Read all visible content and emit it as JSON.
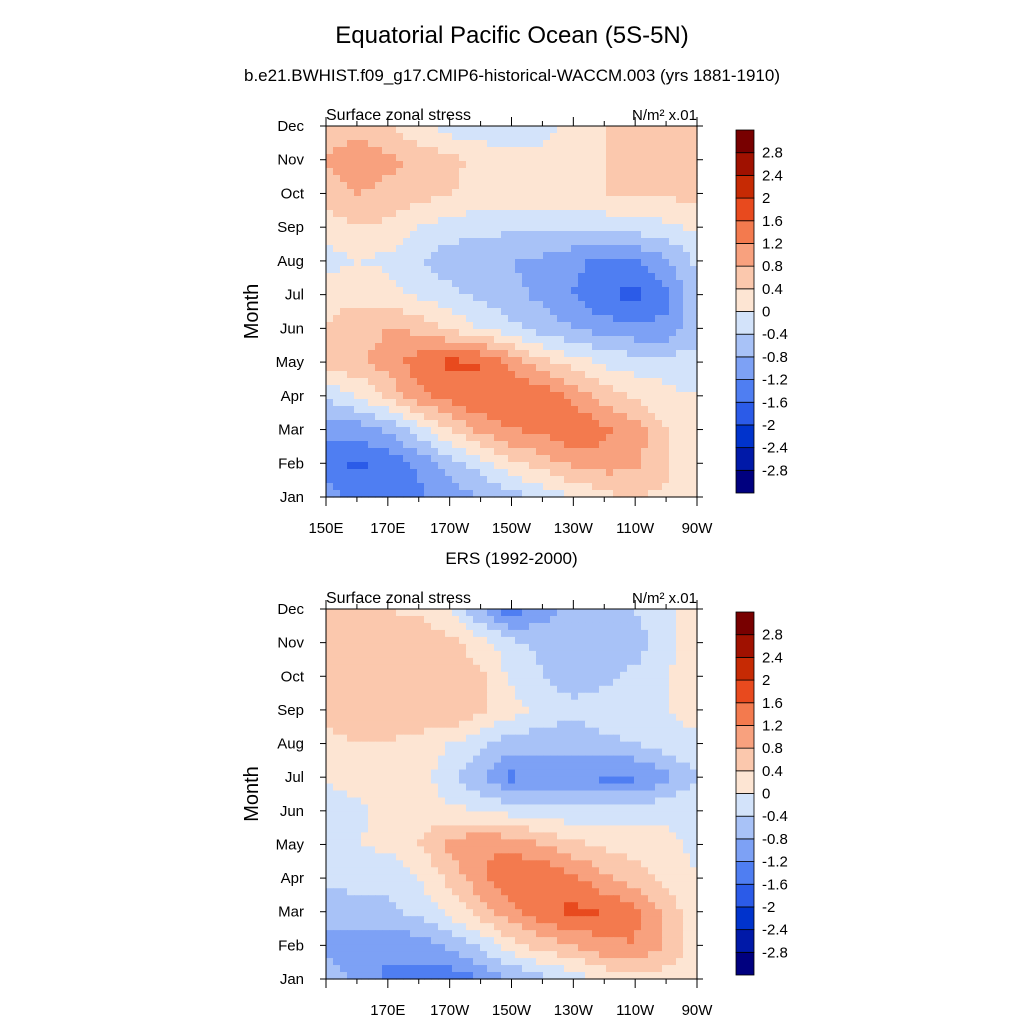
{
  "main_title": "Equatorial Pacific Ocean (5S-5N)",
  "sub_title": "b.e21.BWHIST.f09_g17.CMIP6-historical-WACCM.003 (yrs 1881-1910)",
  "colorbar": {
    "levels": [
      "-2.8",
      "-2.4",
      "-2",
      "-1.6",
      "-1.2",
      "-0.8",
      "-0.4",
      "0",
      "0.4",
      "0.8",
      "1.2",
      "1.6",
      "2",
      "2.4",
      "2.8"
    ],
    "colors": [
      "#00007f",
      "#0019a8",
      "#0033cc",
      "#2b5be8",
      "#4f7ef2",
      "#7da1f5",
      "#a8c2f7",
      "#d3e3fa",
      "#fde5d3",
      "#fbc8ad",
      "#f8a17e",
      "#f37a4e",
      "#e84a1e",
      "#c62a04",
      "#a01100",
      "#780000"
    ]
  },
  "chart_data": [
    {
      "type": "heatmap",
      "title": "",
      "left_label": "Surface zonal stress",
      "units": "N/m² x.01",
      "ylabel": "Month",
      "x_ticks": [
        "150E",
        "170E",
        "170W",
        "150W",
        "130W",
        "110W",
        "90W"
      ],
      "y_ticks": [
        "Jan",
        "Feb",
        "Mar",
        "Apr",
        "May",
        "Jun",
        "Jul",
        "Aug",
        "Sep",
        "Oct",
        "Nov",
        "Dec"
      ],
      "x": [
        150,
        160,
        170,
        180,
        190,
        200,
        210,
        220,
        230,
        240,
        250,
        260,
        270
      ],
      "y": [
        "Jan",
        "Feb",
        "Mar",
        "Apr",
        "May",
        "Jun",
        "Jul",
        "Aug",
        "Sep",
        "Oct",
        "Nov",
        "Dec"
      ],
      "z": [
        [
          -1.0,
          -1.3,
          -1.4,
          -1.3,
          -1.0,
          -0.8,
          -0.6,
          -0.3,
          0.0,
          0.3,
          0.4,
          0.3,
          0.0
        ],
        [
          -1.4,
          -1.7,
          -1.5,
          -1.1,
          -0.6,
          -0.2,
          0.3,
          0.6,
          0.9,
          1.0,
          0.9,
          0.5,
          0.0
        ],
        [
          -1.1,
          -1.0,
          -0.7,
          -0.2,
          0.4,
          0.9,
          1.2,
          1.3,
          1.6,
          1.3,
          1.0,
          0.4,
          0.0
        ],
        [
          -0.3,
          0.0,
          0.5,
          1.1,
          1.4,
          1.6,
          1.6,
          1.5,
          1.1,
          0.6,
          0.3,
          0.1,
          0.0
        ],
        [
          0.6,
          0.7,
          1.0,
          1.4,
          1.7,
          1.6,
          1.1,
          0.5,
          0.2,
          -0.1,
          -0.2,
          -0.2,
          -0.3
        ],
        [
          0.4,
          0.6,
          0.8,
          0.7,
          0.3,
          0.0,
          -0.3,
          -0.6,
          -0.8,
          -1.0,
          -1.1,
          -1.1,
          -0.5
        ],
        [
          0.3,
          0.3,
          0.2,
          -0.1,
          -0.3,
          -0.5,
          -0.7,
          -0.9,
          -1.2,
          -1.6,
          -1.7,
          -1.3,
          -0.4
        ],
        [
          -0.2,
          0.0,
          -0.1,
          -0.4,
          -0.6,
          -0.7,
          -0.8,
          -0.9,
          -1.1,
          -1.3,
          -1.2,
          -0.9,
          -0.3
        ],
        [
          0.2,
          0.4,
          0.3,
          0.0,
          -0.2,
          -0.3,
          -0.3,
          -0.3,
          -0.3,
          -0.3,
          -0.2,
          -0.1,
          0.1
        ],
        [
          0.6,
          0.8,
          0.7,
          0.6,
          0.4,
          0.3,
          0.3,
          0.3,
          0.4,
          0.4,
          0.5,
          0.5,
          0.5
        ],
        [
          0.8,
          1.1,
          0.9,
          0.7,
          0.5,
          0.3,
          0.2,
          0.2,
          0.3,
          0.4,
          0.5,
          0.5,
          0.5
        ],
        [
          0.5,
          0.6,
          0.4,
          0.1,
          -0.2,
          -0.3,
          -0.4,
          -0.2,
          0.2,
          0.4,
          0.4,
          0.5,
          0.5
        ]
      ]
    },
    {
      "type": "heatmap",
      "title": "ERS (1992-2000)",
      "left_label": "Surface zonal stress",
      "units": "N/m² x.01",
      "ylabel": "Month",
      "x_ticks": [
        "170E",
        "170W",
        "150W",
        "130W",
        "110W",
        "90W"
      ],
      "y_ticks": [
        "Jan",
        "Feb",
        "Mar",
        "Apr",
        "May",
        "Jun",
        "Jul",
        "Aug",
        "Sep",
        "Oct",
        "Nov",
        "Dec"
      ],
      "x": [
        150,
        160,
        170,
        180,
        190,
        200,
        210,
        220,
        230,
        240,
        250,
        260,
        270
      ],
      "y": [
        "Jan",
        "Feb",
        "Mar",
        "Apr",
        "May",
        "Jun",
        "Jul",
        "Aug",
        "Sep",
        "Oct",
        "Nov",
        "Dec"
      ],
      "z": [
        [
          -0.6,
          -0.9,
          -1.3,
          -1.4,
          -1.5,
          -1.2,
          -0.8,
          -0.5,
          -0.2,
          0.1,
          0.3,
          0.2,
          0.0
        ],
        [
          -0.9,
          -1.0,
          -1.1,
          -1.0,
          -0.7,
          -0.3,
          0.2,
          0.6,
          0.8,
          1.1,
          1.2,
          0.8,
          0.2
        ],
        [
          -0.7,
          -0.6,
          -0.5,
          -0.3,
          0.1,
          0.6,
          1.1,
          1.5,
          1.7,
          1.6,
          1.3,
          0.7,
          0.1
        ],
        [
          -0.3,
          -0.2,
          -0.3,
          0.0,
          0.5,
          1.1,
          1.5,
          1.6,
          1.3,
          0.9,
          0.6,
          0.3,
          0.0
        ],
        [
          -0.1,
          0.0,
          0.1,
          0.4,
          0.9,
          1.2,
          1.1,
          0.8,
          0.5,
          0.3,
          0.2,
          0.1,
          -0.1
        ],
        [
          -0.3,
          -0.1,
          0.1,
          0.2,
          0.1,
          0.0,
          -0.2,
          -0.3,
          -0.3,
          -0.2,
          -0.2,
          -0.1,
          -0.1
        ],
        [
          0.1,
          0.2,
          0.3,
          0.2,
          -0.3,
          -0.8,
          -1.3,
          -1.1,
          -1.2,
          -1.3,
          -1.3,
          -0.9,
          -0.4
        ],
        [
          0.3,
          0.4,
          0.4,
          0.3,
          0.0,
          -0.3,
          -0.6,
          -0.6,
          -0.6,
          -0.5,
          -0.4,
          -0.2,
          -0.1
        ],
        [
          0.5,
          0.6,
          0.5,
          0.6,
          0.8,
          0.5,
          0.2,
          -0.2,
          -0.3,
          -0.2,
          -0.1,
          0.0,
          0.2
        ],
        [
          0.6,
          0.6,
          0.6,
          0.7,
          0.6,
          0.5,
          -0.1,
          -0.4,
          -0.6,
          -0.5,
          -0.3,
          0.0,
          0.3
        ],
        [
          0.4,
          0.5,
          0.6,
          0.7,
          0.5,
          0.2,
          -0.3,
          -0.5,
          -0.5,
          -0.6,
          -0.6,
          -0.2,
          0.3
        ],
        [
          0.4,
          0.5,
          0.4,
          0.3,
          0.0,
          -0.8,
          -1.5,
          -1.0,
          -0.6,
          -0.5,
          -0.4,
          -0.1,
          0.3
        ]
      ]
    }
  ]
}
